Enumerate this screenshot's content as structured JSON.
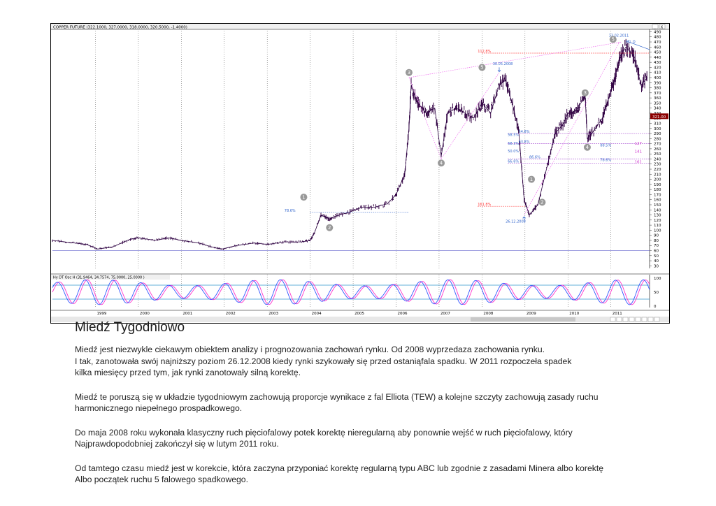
{
  "window": {
    "title": "COPPER FUTURE (322.1000, 327.0000, 318.0000, 320.5000, -1.4000)",
    "osc_title": "Hy DT Osc H (31.9464, 34.7574, 75.0000, 25.0000 )",
    "controls": [
      "_",
      "X"
    ]
  },
  "price_badge": "321.00",
  "chart_data": [
    {
      "type": "line",
      "title": "COPPER FUTURE (322.1000, 327.0000, 318.0000, 320.5000, -1.4000)",
      "x_tick_labels": [
        "1999",
        "2000",
        "2001",
        "2002",
        "2003",
        "2004",
        "2005",
        "2006",
        "2007",
        "2008",
        "2009",
        "2010",
        "2011"
      ],
      "y_tick_labels": [
        30,
        40,
        50,
        60,
        70,
        80,
        90,
        100,
        110,
        120,
        130,
        140,
        150,
        160,
        170,
        180,
        190,
        200,
        210,
        220,
        230,
        240,
        250,
        260,
        270,
        280,
        290,
        300,
        310,
        320,
        330,
        340,
        350,
        360,
        370,
        380,
        390,
        400,
        410,
        420,
        430,
        440,
        450,
        460,
        470,
        480,
        490
      ],
      "ylim": [
        25,
        492
      ],
      "xlim": [
        1998.0,
        2011.9
      ],
      "series": [
        {
          "x": [
            1998.0,
            1998.4,
            1998.8,
            1999.05,
            1999.4,
            1999.8,
            2000.0,
            2000.4,
            2000.7,
            2001.0,
            2001.4,
            2001.8,
            2001.95,
            2002.3,
            2002.7,
            2003.0,
            2003.4,
            2003.8,
            2004.0,
            2004.1,
            2004.25,
            2004.45,
            2004.6,
            2004.9,
            2005.2,
            2005.5,
            2005.8,
            2006.0,
            2006.2,
            2006.3,
            2006.35,
            2006.5,
            2006.7,
            2006.9,
            2007.05,
            2007.2,
            2007.4,
            2007.6,
            2007.8,
            2008.0,
            2008.2,
            2008.4,
            2008.55,
            2008.7,
            2008.85,
            2008.98,
            2009.1,
            2009.3,
            2009.5,
            2009.7,
            2009.9,
            2010.0,
            2010.2,
            2010.4,
            2010.45,
            2010.6,
            2010.8,
            2010.95,
            2011.1,
            2011.2,
            2011.35,
            2011.55,
            2011.7,
            2011.85
          ],
          "values": [
            80,
            76,
            72,
            63,
            67,
            82,
            85,
            80,
            85,
            80,
            75,
            65,
            63,
            70,
            75,
            72,
            77,
            77,
            80,
            95,
            130,
            122,
            128,
            135,
            145,
            145,
            152,
            170,
            210,
            300,
            385,
            350,
            330,
            340,
            245,
            330,
            340,
            330,
            320,
            350,
            330,
            385,
            395,
            350,
            300,
            160,
            130,
            150,
            220,
            290,
            310,
            330,
            335,
            365,
            280,
            295,
            320,
            360,
            400,
            440,
            460,
            440,
            385,
            400
          ]
        }
      ],
      "annotations": [
        "78.6%",
        "112.8%",
        "30.05.2008",
        "13.02.2011",
        "LTL O",
        "161.8%",
        "26.12.2008",
        "54.8%",
        "58.5%",
        "63.8%",
        "58.3%",
        "78.4%",
        "50.0%",
        "66.6%",
        "61.8%",
        "86.6%",
        "127",
        "141",
        "161",
        "88.5%",
        "78.6%"
      ],
      "wave_labels": [
        "1",
        "2",
        "3",
        "4",
        "5",
        "1",
        "2",
        "3",
        "4",
        "5"
      ]
    },
    {
      "type": "line",
      "title": "Hy DT Osc H (31.9464, 34.7574, 75.0000, 25.0000 )",
      "y_tick_labels": [
        0,
        50,
        100
      ],
      "ylim": [
        -5,
        105
      ],
      "reference_lines": [
        25,
        75
      ],
      "series": [
        {
          "name": "31.9464",
          "color": "#ff33cc"
        },
        {
          "name": "34.7574",
          "color": "#3355ff"
        }
      ]
    }
  ],
  "article": {
    "title": "Miedź Tygodniowo",
    "paragraphs": [
      "Miedź jest niezwykle ciekawym obiektem analizy i prognozowania zachowań rynku. Od 2008 wyprzedaza zachowania rynku.\nI tak, zanotowała swój najniższy poziom 26.12.2008 kiedy rynki szykowały się przed ostaniąfala spadku. W 2011 rozpoczeła spadek\nkilka miesięcy przed tym, jak rynki zanotowały silną korektę.",
      "Miedź te poruszą się  w układzie tygodniowym zachowują proporcje wynikace z fal Elliota (TEW) a kolejne szczyty zachowują zasady ruchu\nharmonicznego  niepełnego  prospadkowego.",
      "Do maja 2008 roku wykonała klasyczny ruch pięciofalowy potek korektę nieregularną aby ponownie wejść w ruch pięciofalowy, który\nNajprawdopodobniej zakończył się w lutym 2011 roku.",
      "Od tamtego czasu miedź jest w korekcie, która zaczyna przyponiać korektę regularną typu ABC lub zgodnie z zasadami Minera albo korektę\nAlbo początek ruchu 5 falowego spadkowego."
    ]
  }
}
